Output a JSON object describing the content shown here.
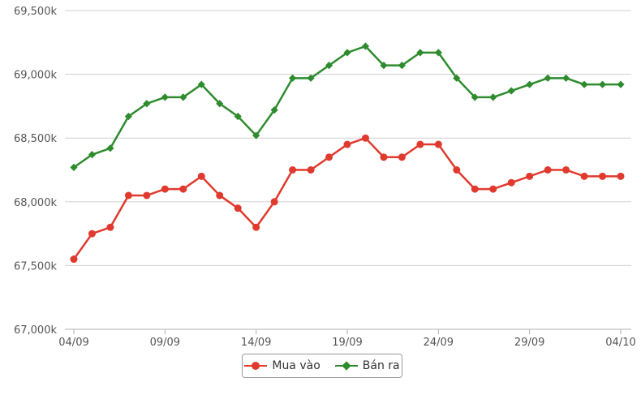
{
  "chart_data": {
    "type": "line",
    "x": [
      "04/09",
      "05/09",
      "06/09",
      "07/09",
      "08/09",
      "09/09",
      "10/09",
      "11/09",
      "12/09",
      "13/09",
      "14/09",
      "15/09",
      "16/09",
      "17/09",
      "18/09",
      "19/09",
      "20/09",
      "21/09",
      "22/09",
      "23/09",
      "24/09",
      "25/09",
      "26/09",
      "27/09",
      "28/09",
      "29/09",
      "30/09",
      "01/10",
      "02/10",
      "03/10",
      "04/10"
    ],
    "x_tick_labels": [
      "04/09",
      "09/09",
      "14/09",
      "19/09",
      "24/09",
      "29/09",
      "04/10"
    ],
    "y_tick_labels": [
      "67,000k",
      "67,500k",
      "68,000k",
      "68,500k",
      "69,000k",
      "69,500k"
    ],
    "ylim": [
      67000,
      69500
    ],
    "grid": true,
    "legend_position": "bottom",
    "series": [
      {
        "name": "Mua vào",
        "color": "#e03a2e",
        "marker": "circle",
        "values": [
          67550,
          67750,
          67800,
          68050,
          68050,
          68100,
          68100,
          68200,
          68050,
          67950,
          67800,
          68000,
          68250,
          68250,
          68350,
          68450,
          68500,
          68350,
          68350,
          68450,
          68450,
          68250,
          68100,
          68100,
          68150,
          68200,
          68250,
          68250,
          68200,
          68200,
          68200
        ]
      },
      {
        "name": "Bán ra",
        "color": "#2e8b2e",
        "marker": "diamond",
        "values": [
          68270,
          68370,
          68420,
          68670,
          68770,
          68820,
          68820,
          68920,
          68770,
          68670,
          68520,
          68720,
          68970,
          68970,
          69070,
          69170,
          69220,
          69070,
          69070,
          69170,
          69170,
          68970,
          68820,
          68820,
          68870,
          68920,
          68970,
          68970,
          68920,
          68920,
          68920
        ]
      }
    ]
  }
}
